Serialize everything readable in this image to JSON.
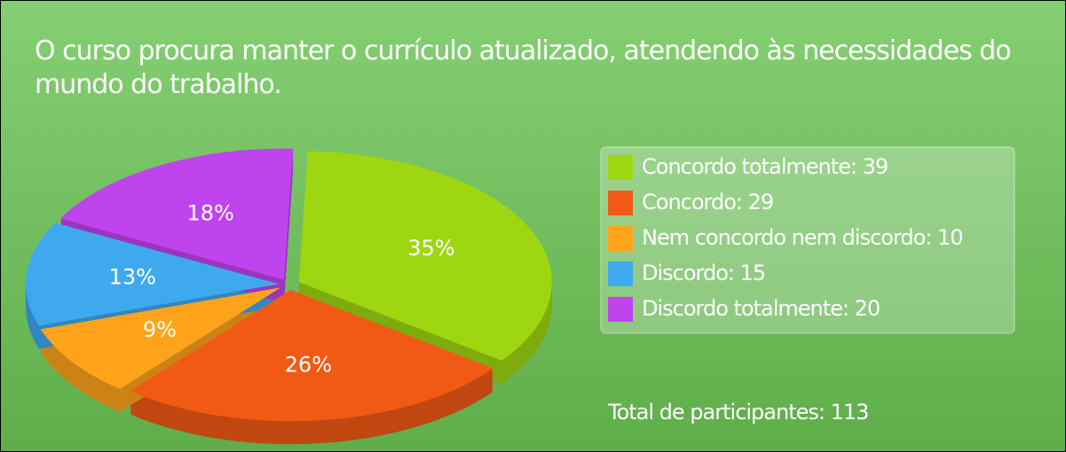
{
  "chart_data": {
    "type": "pie",
    "title": "O curso procura manter o currículo atualizado, atendendo às necessidades do mundo do trabalho.",
    "categories": [
      "Concordo totalmente: 39",
      "Concordo: 29",
      "Nem concordo nem discordo: 10",
      "Discordo: 15",
      "Discordo totalmente: 20"
    ],
    "values": [
      35,
      26,
      9,
      13,
      18
    ],
    "value_labels": [
      "35%",
      "26%",
      "9%",
      "13%",
      "18%"
    ],
    "colors": [
      "#9ed611",
      "#f05a14",
      "#ffa41a",
      "#3fa9ee",
      "#c044ee"
    ],
    "annotation": "Total de participantes: 113"
  }
}
